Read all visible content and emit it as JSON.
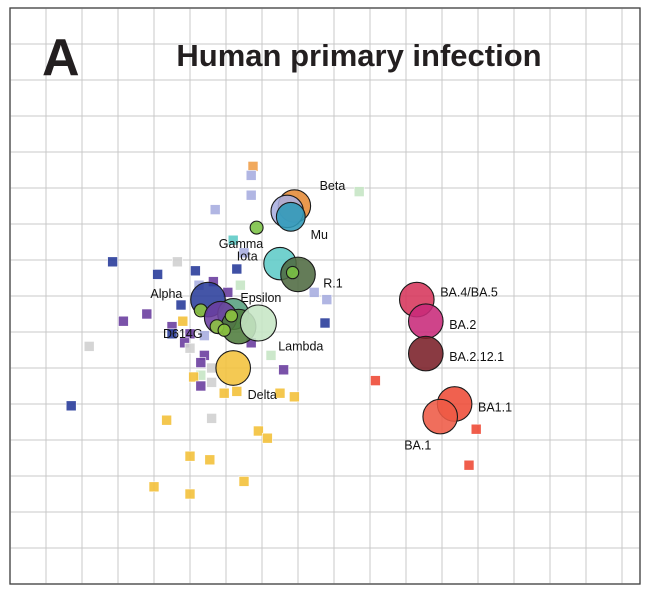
{
  "panel_letter": "A",
  "chart_data": {
    "type": "scatter",
    "title": "Human primary infection",
    "xlabel": "",
    "ylabel": "",
    "xlim": [
      0,
      17.5
    ],
    "ylim": [
      0,
      16
    ],
    "grid": true,
    "legend": "none",
    "antigens": [
      {
        "name": "Beta",
        "x": 7.9,
        "y": 10.5,
        "r": 0.45,
        "color": "#e58a35",
        "label_dx": 0.7,
        "label_dy": 0.55
      },
      {
        "name": "",
        "x": 7.7,
        "y": 10.35,
        "r": 0.45,
        "color": "#a9aee0"
      },
      {
        "name": "Mu",
        "x": 7.8,
        "y": 10.2,
        "r": 0.4,
        "color": "#2f9ab8",
        "label_dx": 0.55,
        "label_dy": -0.5
      },
      {
        "name": "Gamma",
        "x": 6.85,
        "y": 9.9,
        "r": 0.18,
        "color": "#7ac143",
        "label_dx": -1.05,
        "label_dy": -0.45
      },
      {
        "name": "Iota",
        "x": 7.5,
        "y": 8.9,
        "r": 0.45,
        "color": "#5fcbc7",
        "label_dx": -1.2,
        "label_dy": 0.2
      },
      {
        "name": "R.1",
        "x": 8.0,
        "y": 8.6,
        "r": 0.48,
        "color": "#4e6a41",
        "label_dx": 0.7,
        "label_dy": -0.25
      },
      {
        "name": "",
        "x": 7.85,
        "y": 8.65,
        "r": 0.17,
        "color": "#7ac143"
      },
      {
        "name": "Alpha",
        "x": 5.5,
        "y": 7.9,
        "r": 0.48,
        "color": "#2a3d9b",
        "label_dx": -1.6,
        "label_dy": 0.15
      },
      {
        "name": "",
        "x": 5.3,
        "y": 7.6,
        "r": 0.18,
        "color": "#8dc63f"
      },
      {
        "name": "Epsilon",
        "x": 6.2,
        "y": 7.5,
        "r": 0.43,
        "color": "#56a07e",
        "label_dx": 0.2,
        "label_dy": 0.45
      },
      {
        "name": "",
        "x": 5.85,
        "y": 7.4,
        "r": 0.45,
        "color": "#6b3fa0"
      },
      {
        "name": "",
        "x": 6.35,
        "y": 7.15,
        "r": 0.48,
        "color": "#4f7c3c"
      },
      {
        "name": "",
        "x": 6.15,
        "y": 7.45,
        "r": 0.17,
        "color": "#8dc63f"
      },
      {
        "name": "D614G",
        "x": 5.75,
        "y": 7.15,
        "r": 0.19,
        "color": "#8dc63f",
        "label_dx": -1.5,
        "label_dy": -0.2
      },
      {
        "name": "",
        "x": 5.95,
        "y": 7.05,
        "r": 0.17,
        "color": "#8dc63f"
      },
      {
        "name": "Lambda",
        "x": 6.9,
        "y": 7.25,
        "r": 0.5,
        "color": "#c6e6c5",
        "label_dx": 0.55,
        "label_dy": -0.65
      },
      {
        "name": "Delta",
        "x": 6.2,
        "y": 6.0,
        "r": 0.48,
        "color": "#f3c13b",
        "label_dx": 0.4,
        "label_dy": -0.75
      },
      {
        "name": "BA.4/BA.5",
        "x": 11.3,
        "y": 7.9,
        "r": 0.48,
        "color": "#d6365b",
        "label_dx": 0.65,
        "label_dy": 0.2
      },
      {
        "name": "BA.2",
        "x": 11.55,
        "y": 7.3,
        "r": 0.48,
        "color": "#c82a7a",
        "label_dx": 0.65,
        "label_dy": -0.1
      },
      {
        "name": "BA.2.12.1",
        "x": 11.55,
        "y": 6.4,
        "r": 0.48,
        "color": "#7a1f28",
        "label_dx": 0.65,
        "label_dy": -0.1
      },
      {
        "name": "BA1.1",
        "x": 12.35,
        "y": 5.0,
        "r": 0.48,
        "color": "#ee4b37",
        "label_dx": 0.65,
        "label_dy": -0.1
      },
      {
        "name": "BA.1",
        "x": 11.95,
        "y": 4.65,
        "r": 0.48,
        "color": "#ee5a45",
        "label_dx": -1.0,
        "label_dy": -0.8
      }
    ],
    "sera": [
      {
        "x": 6.75,
        "y": 11.6,
        "color": "#f0a04b"
      },
      {
        "x": 6.7,
        "y": 11.35,
        "color": "#a9aee0"
      },
      {
        "x": 6.7,
        "y": 10.8,
        "color": "#a9aee0"
      },
      {
        "x": 9.7,
        "y": 10.9,
        "color": "#c6e6c5"
      },
      {
        "x": 5.7,
        "y": 10.4,
        "color": "#a9aee0"
      },
      {
        "x": 6.2,
        "y": 9.55,
        "color": "#5fcbc7"
      },
      {
        "x": 6.5,
        "y": 9.2,
        "color": "#a9aee0"
      },
      {
        "x": 2.85,
        "y": 8.95,
        "color": "#2a3d9b"
      },
      {
        "x": 4.65,
        "y": 8.95,
        "color": "#d0d0d0"
      },
      {
        "x": 5.15,
        "y": 8.7,
        "color": "#2a3d9b"
      },
      {
        "x": 6.3,
        "y": 8.75,
        "color": "#2a3d9b"
      },
      {
        "x": 4.1,
        "y": 8.6,
        "color": "#2a3d9b"
      },
      {
        "x": 5.25,
        "y": 8.3,
        "color": "#a9aee0"
      },
      {
        "x": 6.4,
        "y": 8.3,
        "color": "#c6e6c5"
      },
      {
        "x": 8.45,
        "y": 8.1,
        "color": "#a9aee0"
      },
      {
        "x": 6.05,
        "y": 8.1,
        "color": "#6b3fa0"
      },
      {
        "x": 5.65,
        "y": 8.4,
        "color": "#6b3fa0"
      },
      {
        "x": 8.8,
        "y": 7.9,
        "color": "#a9aee0"
      },
      {
        "x": 4.75,
        "y": 7.75,
        "color": "#2a3d9b"
      },
      {
        "x": 3.8,
        "y": 7.5,
        "color": "#6b3fa0"
      },
      {
        "x": 3.15,
        "y": 7.3,
        "color": "#6b3fa0"
      },
      {
        "x": 8.75,
        "y": 7.25,
        "color": "#2a3d9b"
      },
      {
        "x": 4.8,
        "y": 7.3,
        "color": "#f3c13b"
      },
      {
        "x": 4.5,
        "y": 7.15,
        "color": "#6b3fa0"
      },
      {
        "x": 4.5,
        "y": 6.95,
        "color": "#2a3d9b"
      },
      {
        "x": 5.0,
        "y": 6.95,
        "color": "#6b3fa0"
      },
      {
        "x": 4.85,
        "y": 6.7,
        "color": "#6b3fa0"
      },
      {
        "x": 5.4,
        "y": 6.9,
        "color": "#a9aee0"
      },
      {
        "x": 2.2,
        "y": 6.6,
        "color": "#d0d0d0"
      },
      {
        "x": 5.0,
        "y": 6.55,
        "color": "#d0d0d0"
      },
      {
        "x": 6.7,
        "y": 6.7,
        "color": "#6b3fa0"
      },
      {
        "x": 5.4,
        "y": 6.35,
        "color": "#6b3fa0"
      },
      {
        "x": 5.3,
        "y": 6.15,
        "color": "#6b3fa0"
      },
      {
        "x": 7.25,
        "y": 6.35,
        "color": "#c6e6c5"
      },
      {
        "x": 5.6,
        "y": 6.0,
        "color": "#d0d0d0"
      },
      {
        "x": 5.3,
        "y": 5.8,
        "color": "#c6e6c5"
      },
      {
        "x": 5.1,
        "y": 5.75,
        "color": "#f3c13b"
      },
      {
        "x": 7.6,
        "y": 5.95,
        "color": "#6b3fa0"
      },
      {
        "x": 5.6,
        "y": 5.6,
        "color": "#d0d0d0"
      },
      {
        "x": 5.3,
        "y": 5.5,
        "color": "#6b3fa0"
      },
      {
        "x": 6.3,
        "y": 5.35,
        "color": "#f3c13b"
      },
      {
        "x": 5.95,
        "y": 5.3,
        "color": "#f3c13b"
      },
      {
        "x": 7.5,
        "y": 5.3,
        "color": "#f3c13b"
      },
      {
        "x": 7.9,
        "y": 5.2,
        "color": "#f3c13b"
      },
      {
        "x": 10.15,
        "y": 5.65,
        "color": "#ee4b37"
      },
      {
        "x": 1.7,
        "y": 4.95,
        "color": "#2a3d9b"
      },
      {
        "x": 4.35,
        "y": 4.55,
        "color": "#f3c13b"
      },
      {
        "x": 5.6,
        "y": 4.6,
        "color": "#d0d0d0"
      },
      {
        "x": 6.9,
        "y": 4.25,
        "color": "#f3c13b"
      },
      {
        "x": 7.15,
        "y": 4.05,
        "color": "#f3c13b"
      },
      {
        "x": 12.95,
        "y": 4.3,
        "color": "#ee4b37"
      },
      {
        "x": 5.0,
        "y": 3.55,
        "color": "#f3c13b"
      },
      {
        "x": 5.55,
        "y": 3.45,
        "color": "#f3c13b"
      },
      {
        "x": 12.75,
        "y": 3.3,
        "color": "#ee4b37"
      },
      {
        "x": 6.5,
        "y": 2.85,
        "color": "#f3c13b"
      },
      {
        "x": 4.0,
        "y": 2.7,
        "color": "#f3c13b"
      },
      {
        "x": 5.0,
        "y": 2.5,
        "color": "#f3c13b"
      }
    ]
  }
}
